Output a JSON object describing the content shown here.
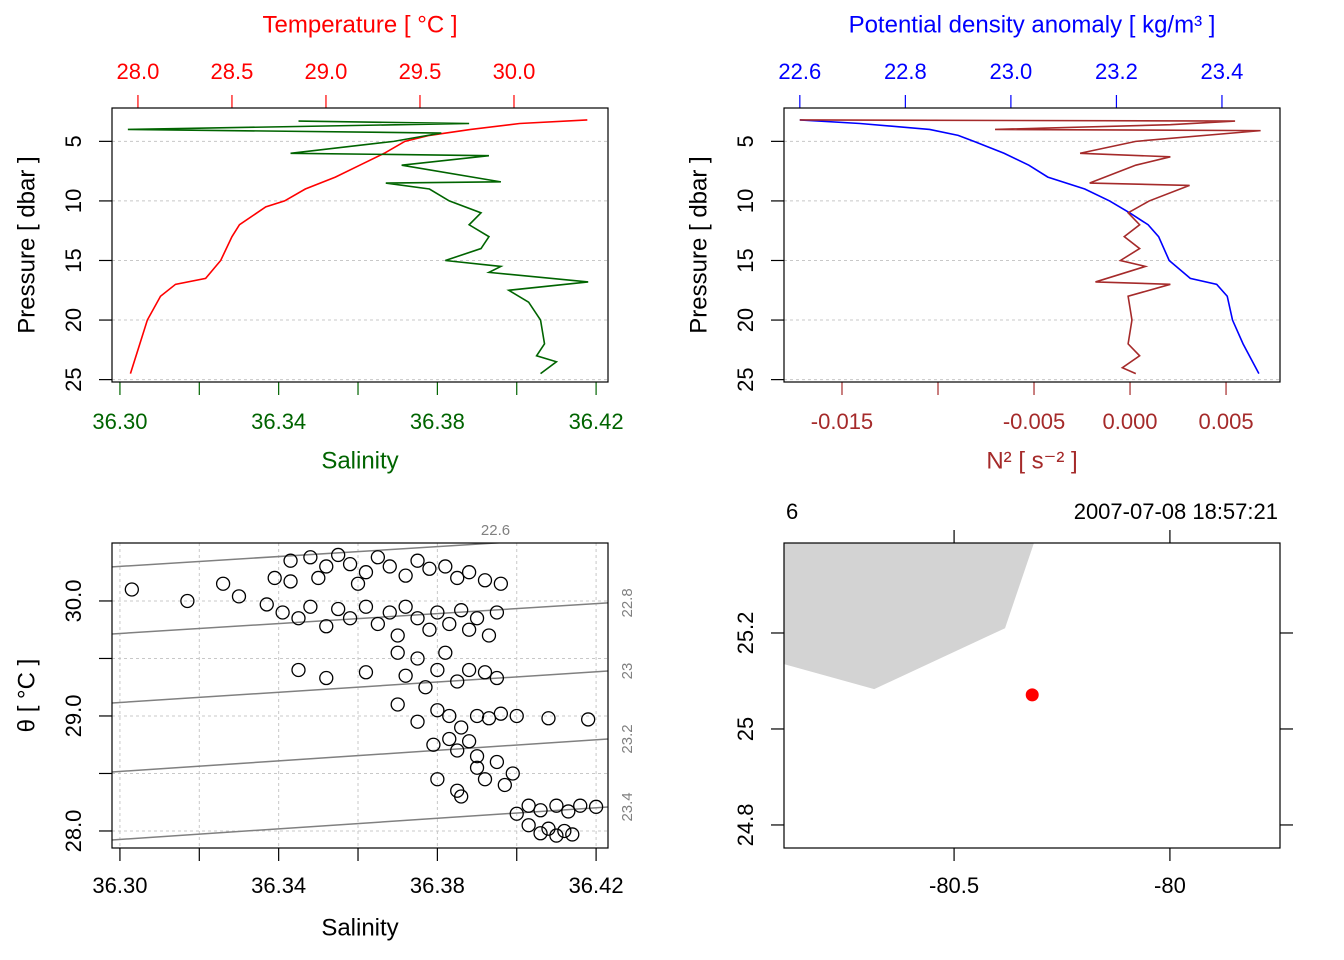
{
  "chart_data": [
    {
      "type": "profile",
      "ylabel": "Pressure [ dbar ]",
      "ylim": [
        25.2,
        2.2
      ],
      "yticks": [
        5,
        10,
        15,
        20,
        25
      ],
      "grid": true,
      "series": [
        {
          "name": "Temperature [ °C ]",
          "color": "#ff0000",
          "axis": "top",
          "xlim": [
            27.862,
            30.5
          ],
          "xticks": [
            {
              "value": 28,
              "label": "28.0"
            },
            28.5,
            {
              "value": 29,
              "label": "29.0"
            },
            29.5,
            {
              "value": 30,
              "label": "30.0"
            }
          ],
          "pressure": [
            3.2,
            3.5,
            4,
            4.5,
            5,
            6,
            7,
            8,
            9,
            10,
            10.5,
            12,
            13,
            15,
            16.5,
            17,
            18,
            20,
            22,
            24.5
          ],
          "values": [
            30.39,
            30.03,
            29.77,
            29.55,
            29.42,
            29.31,
            29.18,
            29.05,
            28.89,
            28.78,
            28.68,
            28.54,
            28.5,
            28.44,
            28.36,
            28.2,
            28.12,
            28.05,
            28.01,
            27.96
          ]
        },
        {
          "name": "Salinity",
          "color": "#006400",
          "axis": "bottom",
          "xlim": [
            36.298,
            36.423
          ],
          "xticks": [
            {
              "value": 36.3,
              "label": "36.30"
            },
            {
              "value": 36.32,
              "label": null
            },
            36.34,
            {
              "value": 36.36,
              "label": null
            },
            36.38,
            {
              "value": 36.4,
              "label": null
            },
            36.42
          ],
          "pressure": [
            3.3,
            3.5,
            4,
            4.3,
            5,
            6,
            6.2,
            7,
            8.4,
            8.5,
            9,
            10,
            11,
            12,
            13,
            14,
            15,
            15.5,
            16,
            16.8,
            17.5,
            18.5,
            20,
            22,
            23,
            23.5,
            24.5
          ],
          "values": [
            36.345,
            36.388,
            36.302,
            36.381,
            36.369,
            36.343,
            36.393,
            36.371,
            36.396,
            36.367,
            36.378,
            36.383,
            36.391,
            36.388,
            36.393,
            36.391,
            36.382,
            36.396,
            36.393,
            36.418,
            36.398,
            36.403,
            36.406,
            36.407,
            36.405,
            36.41,
            36.406
          ]
        }
      ]
    },
    {
      "type": "profile",
      "ylabel": "Pressure [ dbar ]",
      "ylim": [
        25.2,
        2.2
      ],
      "yticks": [
        5,
        10,
        15,
        20,
        25
      ],
      "grid": true,
      "series": [
        {
          "name": "Potential density anomaly [ kg/m³ ]",
          "color": "#0000ff",
          "axis": "top",
          "xlim": [
            22.57,
            23.51
          ],
          "xticks": [
            22.6,
            22.8,
            {
              "value": 23,
              "label": "23.0"
            },
            23.2,
            23.4
          ],
          "pressure": [
            3.2,
            3.5,
            4,
            4.5,
            5,
            6,
            7,
            8,
            9,
            10,
            11,
            12,
            13,
            15,
            16.5,
            17,
            18,
            20,
            22,
            24.5
          ],
          "values": [
            22.6,
            22.714,
            22.846,
            22.9,
            22.93,
            22.987,
            23.034,
            23.07,
            23.14,
            23.187,
            23.225,
            23.26,
            23.28,
            23.3,
            23.34,
            23.39,
            23.41,
            23.42,
            23.44,
            23.47
          ]
        },
        {
          "name": "N² [ s⁻² ]",
          "color": "#a52a2a",
          "axis": "bottom",
          "xlim": [
            -0.01802,
            0.00781
          ],
          "xticks": [
            -0.015,
            {
              "value": -0.01,
              "label": null
            },
            -0.005,
            {
              "value": 0,
              "label": "0.000"
            },
            0.005
          ],
          "pressure": [
            3.2,
            3.3,
            3.6,
            4,
            4.1,
            5,
            6,
            6.3,
            7,
            8.5,
            8.7,
            10,
            11,
            12,
            13,
            14,
            15,
            15.5,
            16.8,
            17,
            18,
            20,
            22,
            23,
            24,
            24.5
          ],
          "values": [
            -0.0172,
            0.00547,
            0.0021,
            -0.00703,
            0.0068,
            0.0003,
            -0.0026,
            0.0021,
            0.0003,
            -0.0021,
            0.0031,
            0.001,
            -0.0001,
            0.0005,
            -0.0003,
            0.0005,
            -0.0005,
            0.0008,
            -0.0018,
            0.0021,
            -0.0001,
            0.0001,
            -0.0001,
            0.0005,
            -0.0004,
            0.0003
          ]
        }
      ]
    },
    {
      "type": "scatter",
      "xlabel": "Salinity",
      "ylabel": "θ [ °C ]",
      "grid": true,
      "color": "#000000",
      "xlim": [
        36.298,
        36.423
      ],
      "xticks": [
        {
          "value": 36.3,
          "label": "36.30"
        },
        {
          "value": 36.32,
          "label": null
        },
        36.34,
        {
          "value": 36.36,
          "label": null
        },
        36.38,
        {
          "value": 36.4,
          "label": null
        },
        36.42
      ],
      "ylim": [
        27.852,
        30.504
      ],
      "yticks": [
        {
          "value": 28,
          "label": "28.0"
        },
        {
          "value": 28.5,
          "label": null
        },
        {
          "value": 29,
          "label": "29.0"
        },
        {
          "value": 29.5,
          "label": null
        },
        {
          "value": 30,
          "label": "30.0"
        }
      ],
      "x": [
        36.343,
        36.348,
        36.352,
        36.355,
        36.358,
        36.362,
        36.365,
        36.368,
        36.372,
        36.375,
        36.378,
        36.382,
        36.385,
        36.388,
        36.392,
        36.396,
        36.35,
        36.36,
        36.303,
        36.317,
        36.326,
        36.33,
        36.337,
        36.339,
        36.343,
        36.341,
        36.345,
        36.348,
        36.352,
        36.355,
        36.358,
        36.362,
        36.365,
        36.368,
        36.37,
        36.372,
        36.375,
        36.378,
        36.38,
        36.383,
        36.386,
        36.388,
        36.39,
        36.393,
        36.395,
        36.345,
        36.352,
        36.362,
        36.37,
        36.372,
        36.375,
        36.377,
        36.38,
        36.382,
        36.385,
        36.388,
        36.392,
        36.395,
        36.37,
        36.375,
        36.38,
        36.383,
        36.386,
        36.39,
        36.393,
        36.396,
        36.4,
        36.408,
        36.418,
        36.379,
        36.383,
        36.385,
        36.388,
        36.39,
        36.38,
        36.385,
        36.39,
        36.392,
        36.395,
        36.397,
        36.399,
        36.386,
        36.4,
        36.403,
        36.406,
        36.41,
        36.413,
        36.416,
        36.42,
        36.403,
        36.406,
        36.408,
        36.41,
        36.412,
        36.414
      ],
      "y": [
        30.35,
        30.38,
        30.3,
        30.4,
        30.32,
        30.25,
        30.38,
        30.3,
        30.22,
        30.35,
        30.28,
        30.3,
        30.2,
        30.25,
        30.18,
        30.15,
        30.2,
        30.15,
        30.1,
        30.0,
        30.15,
        30.04,
        29.97,
        30.2,
        30.17,
        29.9,
        29.85,
        29.95,
        29.78,
        29.93,
        29.85,
        29.95,
        29.8,
        29.9,
        29.7,
        29.95,
        29.85,
        29.75,
        29.9,
        29.8,
        29.92,
        29.75,
        29.85,
        29.7,
        29.9,
        29.4,
        29.33,
        29.38,
        29.55,
        29.35,
        29.5,
        29.25,
        29.4,
        29.55,
        29.3,
        29.4,
        29.38,
        29.33,
        29.1,
        28.95,
        29.05,
        29.0,
        28.9,
        29.0,
        28.98,
        29.02,
        29.0,
        28.98,
        28.97,
        28.75,
        28.8,
        28.7,
        28.78,
        28.65,
        28.45,
        28.35,
        28.55,
        28.45,
        28.6,
        28.4,
        28.5,
        28.3,
        28.15,
        28.22,
        28.18,
        28.22,
        28.17,
        28.22,
        28.21,
        28.05,
        27.98,
        28.02,
        27.96,
        28.0,
        27.97
      ],
      "isopycnal_color": "#808080",
      "isopycnals": [
        {
          "level": 22.6,
          "x": [
            36.298,
            36.423
          ],
          "y": [
            30.296,
            30.565
          ]
        },
        {
          "level": 22.8,
          "x": [
            36.298,
            36.423
          ],
          "y": [
            29.713,
            29.983
          ]
        },
        {
          "level": 23,
          "x": [
            36.298,
            36.423
          ],
          "y": [
            29.113,
            29.391
          ]
        },
        {
          "level": 23.2,
          "x": [
            36.298,
            36.423
          ],
          "y": [
            28.513,
            28.8
          ]
        },
        {
          "level": 23.4,
          "x": [
            36.298,
            36.423
          ],
          "y": [
            27.922,
            28.209
          ]
        }
      ]
    },
    {
      "type": "map",
      "station": "6",
      "time": "2007-07-08 18:57:21",
      "xlim": [
        -80.894,
        -79.745
      ],
      "xticks": [
        -80.5,
        -80
      ],
      "ylim": [
        24.752,
        25.3875
      ],
      "yticks": [
        24.8,
        25,
        25.2
      ],
      "land_color": "#d3d3d3",
      "coastline": {
        "lon": [
          -80.894,
          -80.315,
          -80.382,
          -80.685,
          -80.894
        ],
        "lat": [
          25.3875,
          25.3875,
          25.21,
          25.083,
          25.135
        ]
      },
      "station_lon": -80.319,
      "station_lat": 25.071,
      "station_color": "#ff0000"
    }
  ]
}
